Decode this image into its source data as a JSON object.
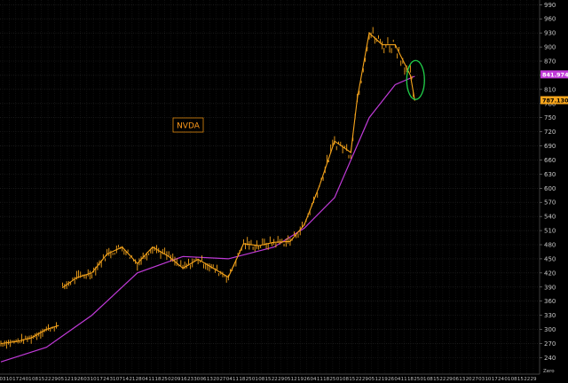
{
  "chart_data": {
    "type": "line",
    "title": "",
    "label": "NVDA",
    "series": [
      {
        "name": "",
        "kind": "price",
        "color": "#f7a51c",
        "x": [
          "2023-04-03",
          "2023-04-17",
          "2023-05-01",
          "2023-05-15",
          "2023-05-26",
          "2023-05-30",
          "2023-06-12",
          "2023-06-26",
          "2023-07-10",
          "2023-07-24",
          "2023-08-07",
          "2023-08-21",
          "2023-09-05",
          "2023-09-18",
          "2023-10-02",
          "2023-10-16",
          "2023-10-30",
          "2023-11-13",
          "2023-11-27",
          "2023-12-11",
          "2023-12-26",
          "2024-01-08",
          "2024-01-22",
          "2024-02-05",
          "2024-02-20",
          "2024-02-26",
          "2024-03-08",
          "2024-03-20",
          "2024-04-01",
          "2024-04-15",
          "2024-04-19"
        ],
        "values": [
          270,
          274,
          282,
          300,
          308,
          389,
          410,
          420,
          460,
          475,
          440,
          475,
          455,
          430,
          449,
          430,
          411,
          482,
          478,
          485,
          487,
          522,
          605,
          700,
          676,
          791,
          930,
          905,
          905,
          840,
          787
        ]
      },
      {
        "name": "",
        "kind": "moving-average",
        "color": "#c03ad8",
        "x": [
          "2023-04-03",
          "2023-05-15",
          "2023-06-26",
          "2023-08-07",
          "2023-09-18",
          "2023-10-30",
          "2023-12-11",
          "2024-01-08",
          "2024-02-05",
          "2024-03-08",
          "2024-04-01",
          "2024-04-19"
        ],
        "values": [
          231,
          262,
          330,
          420,
          455,
          450,
          475,
          515,
          580,
          750,
          820,
          838
        ]
      }
    ],
    "y_axis": {
      "ylim": [
        220,
        1000
      ],
      "ticks": [
        240,
        270,
        300,
        330,
        360,
        390,
        420,
        450,
        480,
        510,
        540,
        570,
        600,
        630,
        660,
        690,
        720,
        750,
        780,
        810,
        840,
        870,
        900,
        930,
        960,
        990
      ],
      "side": "right"
    },
    "x_axis": {
      "xlim": [
        "2023-04-03",
        "2024-07-31"
      ],
      "day_ticks": [
        "03",
        "10",
        "17",
        "24",
        "01",
        "08",
        "15",
        "22",
        "29",
        "05",
        "12",
        "19",
        "26",
        "03",
        "10",
        "17",
        "24",
        "31",
        "07",
        "14",
        "21",
        "28",
        "04",
        "11",
        "18",
        "25",
        "02",
        "09",
        "16",
        "23",
        "30",
        "06",
        "13",
        "20",
        "27",
        "04",
        "11",
        "18",
        "25",
        "01",
        "08",
        "15",
        "22",
        "29",
        "05",
        "12",
        "19",
        "26",
        "04",
        "11",
        "18",
        "25",
        "01",
        "08",
        "15",
        "22",
        "29",
        "05",
        "12",
        "19",
        "26",
        "04",
        "11",
        "18",
        "25",
        "01",
        "08",
        "15",
        "22",
        "29",
        "06",
        "13",
        "20",
        "27",
        "03",
        "10",
        "17",
        "24",
        "01",
        "08",
        "15",
        "22",
        "29"
      ],
      "month_ticks": [
        "Apr 23",
        "May 23",
        "Jun 23",
        "Jul 23",
        "Aug 23",
        "Sep 23",
        "Oct 23",
        "Nov 23",
        "Dec 23",
        "Jan 24",
        "Feb 24",
        "Mar 24",
        "Apr 24",
        "May 24",
        "Jun 24",
        "Jul 24"
      ]
    },
    "badges": [
      {
        "text": "841.974000",
        "value": 841.974,
        "bg": "#c03ad8",
        "fg": "#ffffff"
      },
      {
        "text": "787.130000",
        "value": 787.13,
        "bg": "#f7a51c",
        "fg": "#000000"
      }
    ],
    "annotation": {
      "type": "ellipse",
      "color": "#21d04a",
      "center_date": "2024-04-19",
      "center_value": 830
    },
    "watermark": "Zero",
    "grid": true
  }
}
